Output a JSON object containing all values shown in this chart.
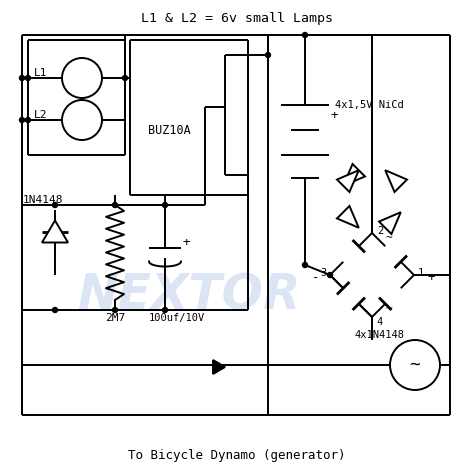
{
  "title": "L1 & L2 = 6v small Lamps",
  "subtitle": "To Bicycle Dynamo (generator)",
  "bg_color": "#ffffff",
  "line_color": "#000000",
  "watermark_color": "#c8d8ee",
  "watermark_text": "NEXTOR",
  "labels": {
    "L1": "L1",
    "L2": "L2",
    "transistor": "BUZ10A",
    "diode1": "1N4148",
    "resistor": "2M7",
    "capacitor": "100uf/10V",
    "battery": "4x1,5V NiCd",
    "bridge": "4x1N4148"
  }
}
